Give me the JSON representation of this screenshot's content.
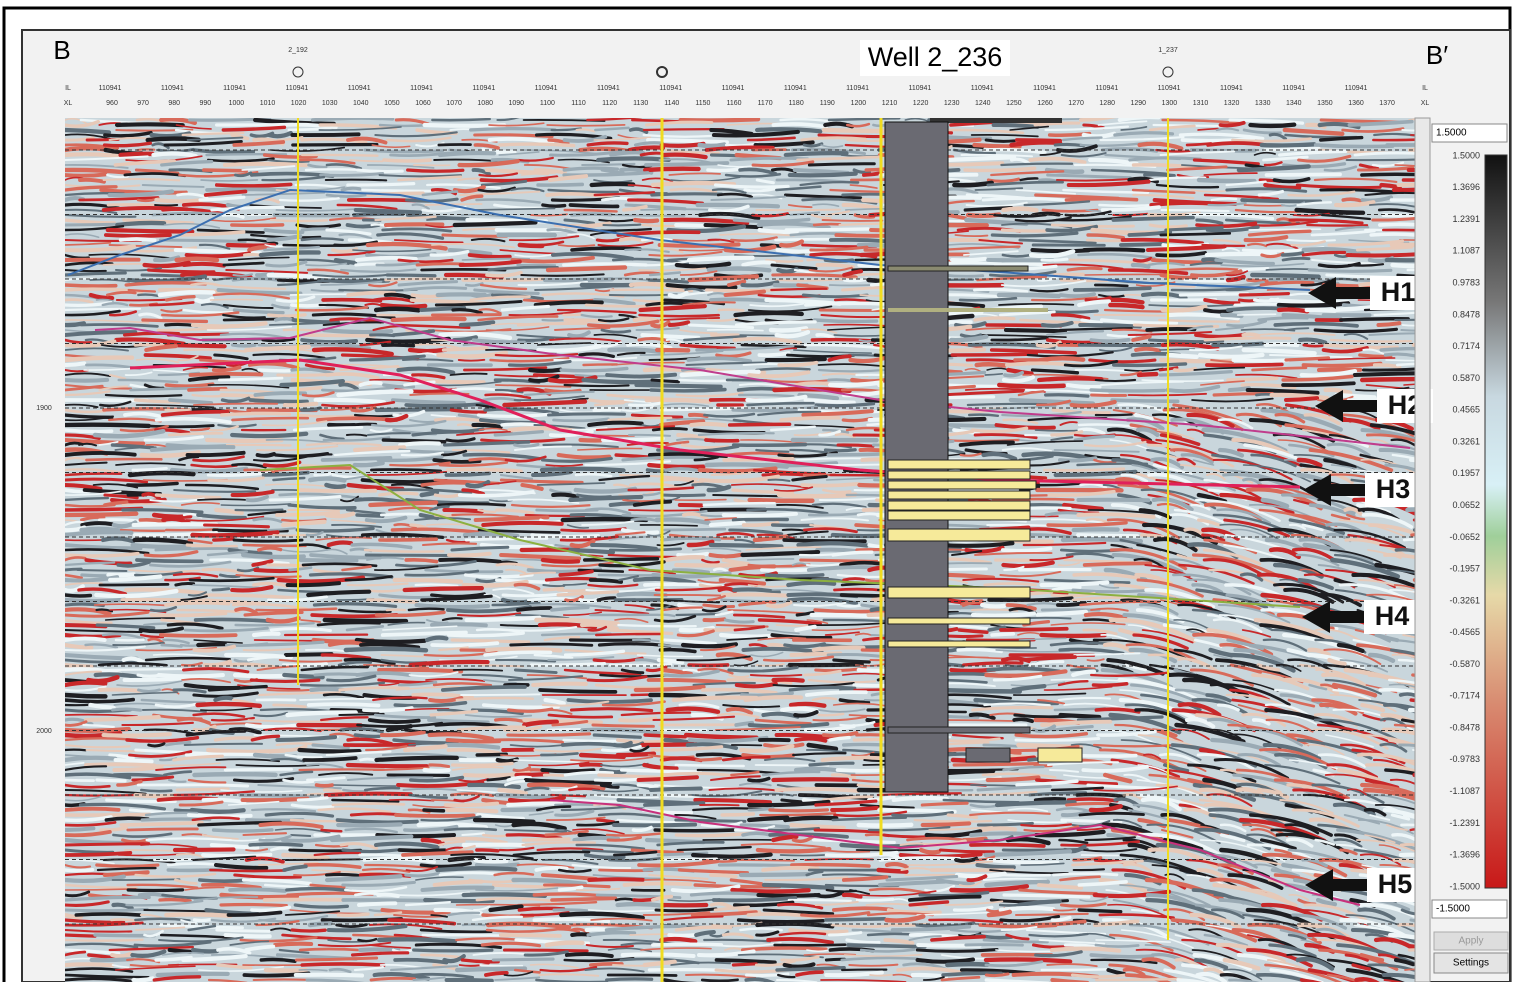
{
  "section": {
    "left_label": "B",
    "right_label": "B′",
    "well_title": "Well 2_236",
    "wells": [
      "2_192",
      "1_237"
    ],
    "inline_header": "IL",
    "crossline_header": "XL",
    "inline_header_right": "IL",
    "crossline_header_right": "XL",
    "inlines": [
      "110941",
      "110941",
      "110941",
      "110941",
      "110941",
      "110941",
      "110941",
      "110941",
      "110941",
      "110941",
      "110941",
      "110941",
      "110941",
      "110941",
      "110941",
      "110941",
      "110941",
      "110941",
      "110941",
      "110941",
      "110941"
    ],
    "crosslines": [
      960,
      970,
      980,
      990,
      1000,
      1010,
      1020,
      1030,
      1040,
      1050,
      1060,
      1070,
      1080,
      1090,
      1100,
      1110,
      1120,
      1130,
      1140,
      1150,
      1160,
      1170,
      1180,
      1190,
      1200,
      1210,
      1220,
      1230,
      1240,
      1250,
      1260,
      1270,
      1280,
      1290,
      1300,
      1310,
      1320,
      1330,
      1340,
      1350,
      1360,
      1370
    ],
    "time_labels": [
      "1900",
      "2000"
    ],
    "horizons": [
      "H1",
      "H2",
      "H3",
      "H4",
      "H5"
    ]
  },
  "colorbar": {
    "max_input": "1.5000",
    "min_input": "-1.5000",
    "labels": [
      "1.5000",
      "1.3696",
      "1.2391",
      "1.1087",
      "0.9783",
      "0.8478",
      "0.7174",
      "0.5870",
      "0.4565",
      "0.3261",
      "0.1957",
      "0.0652",
      "-0.0652",
      "-0.1957",
      "-0.3261",
      "-0.4565",
      "-0.5870",
      "-0.7174",
      "-0.8478",
      "-0.9783",
      "-1.1087",
      "-1.2391",
      "-1.3696",
      "-1.5000"
    ],
    "buttons": [
      "Apply",
      "Settings"
    ]
  }
}
